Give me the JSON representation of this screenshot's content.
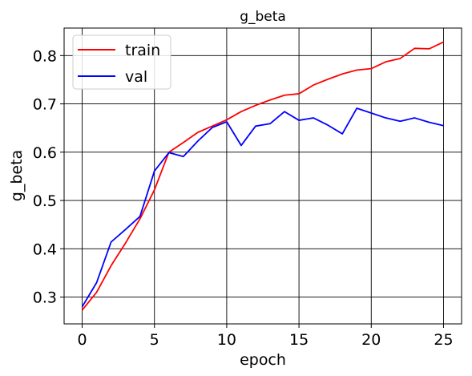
{
  "chart_data": {
    "type": "line",
    "title": "g_beta",
    "xlabel": "epoch",
    "ylabel": "g_beta",
    "xlim": [
      -1.25,
      26.25
    ],
    "ylim": [
      0.2445,
      0.857
    ],
    "xticks": [
      0,
      5,
      10,
      15,
      20,
      25
    ],
    "yticks": [
      0.3,
      0.4,
      0.5,
      0.6,
      0.7,
      0.8
    ],
    "grid": true,
    "legend": "upper-left",
    "x": [
      0,
      1,
      2,
      3,
      4,
      5,
      6,
      7,
      8,
      9,
      10,
      11,
      12,
      13,
      14,
      15,
      16,
      17,
      18,
      19,
      20,
      21,
      22,
      23,
      24,
      25
    ],
    "series": [
      {
        "name": "train",
        "color": "#ff0000",
        "values": [
          0.273,
          0.31,
          0.365,
          0.412,
          0.462,
          0.522,
          0.6,
          0.62,
          0.641,
          0.654,
          0.667,
          0.684,
          0.697,
          0.708,
          0.718,
          0.721,
          0.739,
          0.751,
          0.762,
          0.77,
          0.773,
          0.787,
          0.794,
          0.815,
          0.814,
          0.828
        ]
      },
      {
        "name": "val",
        "color": "#0000ff",
        "values": [
          0.28,
          0.33,
          0.414,
          0.44,
          0.467,
          0.561,
          0.599,
          0.591,
          0.623,
          0.651,
          0.663,
          0.614,
          0.654,
          0.659,
          0.684,
          0.666,
          0.671,
          0.656,
          0.638,
          0.691,
          0.681,
          0.671,
          0.664,
          0.671,
          0.662,
          0.655
        ]
      }
    ]
  }
}
